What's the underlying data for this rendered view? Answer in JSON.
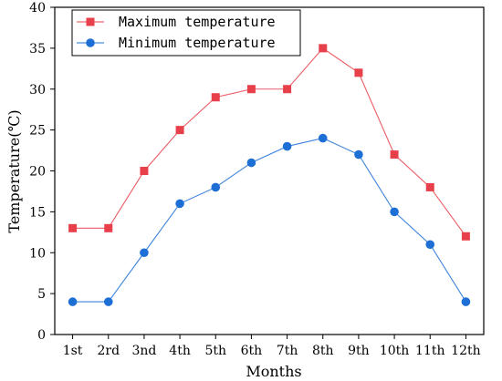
{
  "chart_data": {
    "type": "line",
    "title": "",
    "xlabel": "Months",
    "ylabel": "Temperature(℃)",
    "categories": [
      "1st",
      "2rd",
      "3nd",
      "4th",
      "5th",
      "6th",
      "7th",
      "8th",
      "9th",
      "10th",
      "11th",
      "12th"
    ],
    "yticks": [
      0,
      5,
      10,
      15,
      20,
      25,
      30,
      35,
      40
    ],
    "ylim": [
      0,
      40
    ],
    "grid": false,
    "legend_position": "top-left",
    "series": [
      {
        "name": "Maximum temperature",
        "marker": "square",
        "color": "#e8404a",
        "values": [
          13,
          13,
          20,
          25,
          29,
          30,
          30,
          35,
          32,
          22,
          18,
          12
        ]
      },
      {
        "name": "Minimum temperature",
        "marker": "circle",
        "color": "#1d6fd6",
        "values": [
          4,
          4,
          10,
          16,
          18,
          21,
          23,
          24,
          22,
          15,
          11,
          4
        ]
      }
    ]
  }
}
